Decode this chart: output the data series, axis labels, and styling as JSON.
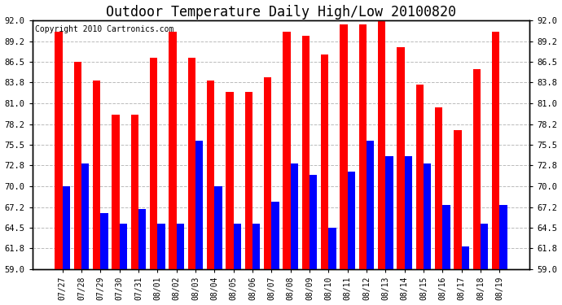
{
  "title": "Outdoor Temperature Daily High/Low 20100820",
  "copyright": "Copyright 2010 Cartronics.com",
  "dates": [
    "07/27",
    "07/28",
    "07/29",
    "07/30",
    "07/31",
    "08/01",
    "08/02",
    "08/03",
    "08/04",
    "08/05",
    "08/06",
    "08/07",
    "08/08",
    "08/09",
    "08/10",
    "08/11",
    "08/12",
    "08/13",
    "08/14",
    "08/15",
    "08/16",
    "08/17",
    "08/18",
    "08/19"
  ],
  "highs": [
    90.5,
    86.5,
    84.0,
    79.5,
    79.5,
    87.0,
    90.5,
    87.0,
    84.0,
    82.5,
    82.5,
    84.5,
    90.5,
    90.0,
    87.5,
    91.5,
    91.5,
    92.0,
    88.5,
    83.5,
    80.5,
    77.5,
    85.5,
    90.5
  ],
  "lows": [
    70.0,
    73.0,
    66.5,
    65.0,
    67.0,
    65.0,
    65.0,
    76.0,
    70.0,
    65.0,
    65.0,
    68.0,
    73.0,
    71.5,
    64.5,
    72.0,
    76.0,
    74.0,
    74.0,
    73.0,
    67.5,
    62.0,
    65.0,
    67.5
  ],
  "high_color": "#ff0000",
  "low_color": "#0000ff",
  "ymin": 59.0,
  "ymax": 92.0,
  "yticks": [
    59.0,
    61.8,
    64.5,
    67.2,
    70.0,
    72.8,
    75.5,
    78.2,
    81.0,
    83.8,
    86.5,
    89.2,
    92.0
  ],
  "grid_color": "#bbbbbb",
  "background_color": "#ffffff",
  "title_fontsize": 12,
  "copyright_fontsize": 7
}
